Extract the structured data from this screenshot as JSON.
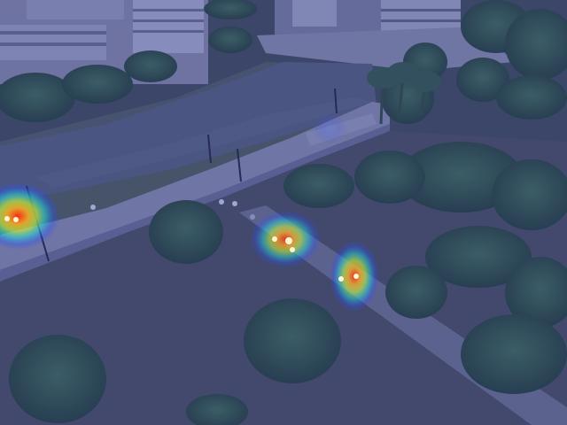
{
  "scene": {
    "type": "aerial-photo-with-density-heatmap",
    "overlay_tint": "#3a3f9a",
    "colors": {
      "water": "#4f5f72",
      "grass": "#4a5a52",
      "trees": "#2f5a3c",
      "road": "#8a8fa8",
      "buildings": "#9aa0b8",
      "heat_low": "#2a4dff",
      "heat_mid": "#20e0c0",
      "heat_high": "#ff3010"
    },
    "hotspots": [
      {
        "name": "hotspot-bridge-left",
        "intensity": 1.0
      },
      {
        "name": "hotspot-path-center",
        "intensity": 0.85
      },
      {
        "name": "hotspot-path-right",
        "intensity": 0.9
      },
      {
        "name": "hotspot-bridge-top",
        "intensity": 0.35
      }
    ]
  }
}
